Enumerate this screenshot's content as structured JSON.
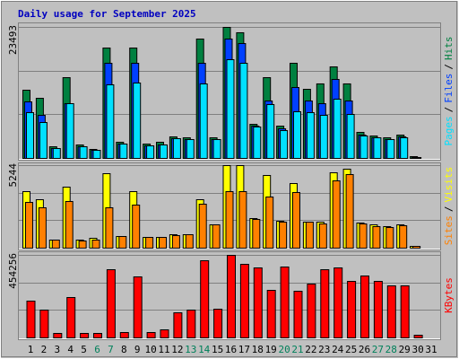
{
  "title": "Daily usage for September 2025",
  "separator": "/",
  "categories": [
    "1",
    "2",
    "3",
    "4",
    "5",
    "6",
    "7",
    "8",
    "9",
    "10",
    "11",
    "12",
    "13",
    "14",
    "15",
    "16",
    "17",
    "18",
    "19",
    "20",
    "21",
    "22",
    "23",
    "24",
    "25",
    "26",
    "27",
    "28",
    "29",
    "30",
    "31"
  ],
  "category_colors": [
    "#000000",
    "#000000",
    "#000000",
    "#000000",
    "#000000",
    "#00805a",
    "#00805a",
    "#000000",
    "#000000",
    "#000000",
    "#000000",
    "#000000",
    "#00805a",
    "#00805a",
    "#000000",
    "#000000",
    "#000000",
    "#000000",
    "#000000",
    "#00805a",
    "#00805a",
    "#000000",
    "#000000",
    "#000000",
    "#000000",
    "#000000",
    "#00805a",
    "#00805a",
    "#000000",
    "#000000",
    "#000000"
  ],
  "chart_data": [
    {
      "type": "bar",
      "ylim": [
        0,
        23493
      ],
      "yticks": [
        23493
      ],
      "gridlines": [
        7831,
        15662
      ],
      "series": [
        {
          "name": "Hits",
          "color": "#008040",
          "values": [
            12230,
            10780,
            2090,
            14480,
            2410,
            1610,
            19790,
            2900,
            19790,
            2570,
            2900,
            3860,
            3700,
            21400,
            3700,
            23493,
            22530,
            6110,
            14480,
            5790,
            17060,
            12390,
            13360,
            16410,
            13360,
            4670,
            4020,
            3700,
            4180,
            320,
            0
          ]
        },
        {
          "name": "Files",
          "color": "#0040ff",
          "values": [
            10137,
            7723,
            1770,
            9815,
            2092,
            1448,
            17056,
            2575,
            17056,
            2253,
            2414,
            3540,
            3379,
            17056,
            3379,
            21401,
            20596,
            5793,
            10298,
            5310,
            12712,
            10298,
            9815,
            14160,
            10298,
            4184,
            3701,
            3379,
            3862,
            161,
            0
          ]
        },
        {
          "name": "Pages",
          "color": "#00e0ff",
          "values": [
            8206,
            6436,
            1770,
            9815,
            2092,
            1448,
            13194,
            2575,
            13516,
            2253,
            2414,
            3540,
            3379,
            13355,
            3379,
            17700,
            17056,
            5632,
            9655,
            4988,
            8367,
            8206,
            7723,
            10620,
            7884,
            4023,
            3701,
            3379,
            3701,
            161,
            0
          ]
        }
      ]
    },
    {
      "type": "bar",
      "ylim": [
        0,
        5244
      ],
      "yticks": [
        5244
      ],
      "gridlines": [
        1748,
        3496
      ],
      "series": [
        {
          "name": "Visits",
          "color": "#ffff00",
          "values": [
            3591,
            3078,
            513,
            3876,
            513,
            627,
            4731,
            741,
            3591,
            684,
            684,
            855,
            855,
            3078,
            1482,
            5244,
            5244,
            1881,
            4617,
            1710,
            4104,
            1653,
            1653,
            4788,
            5016,
            1596,
            1482,
            1368,
            1482,
            114,
            0
          ]
        },
        {
          "name": "Sites",
          "color": "#ff8000",
          "values": [
            2907,
            2565,
            513,
            2964,
            456,
            513,
            2565,
            741,
            2736,
            684,
            684,
            798,
            855,
            2793,
            1482,
            3591,
            3591,
            1824,
            3249,
            1653,
            3534,
            1653,
            1539,
            4275,
            4674,
            1539,
            1368,
            1311,
            1425,
            114,
            0
          ]
        }
      ]
    },
    {
      "type": "bar",
      "ylim": [
        0,
        454256
      ],
      "yticks": [
        454256
      ],
      "gridlines": [
        151419,
        302837
      ],
      "series": [
        {
          "name": "KBytes",
          "color": "#ff0000",
          "values": [
            202440,
            153066,
            24688,
            222192,
            24688,
            24688,
            375258,
            29626,
            335757,
            29626,
            44438,
            138253,
            153066,
            424634,
            158003,
            454256,
            404880,
            385133,
            261693,
            390071,
            256755,
            296256,
            375258,
            385133,
            311069,
            340694,
            311069,
            286381,
            286381,
            14813,
            0
          ]
        }
      ]
    }
  ]
}
